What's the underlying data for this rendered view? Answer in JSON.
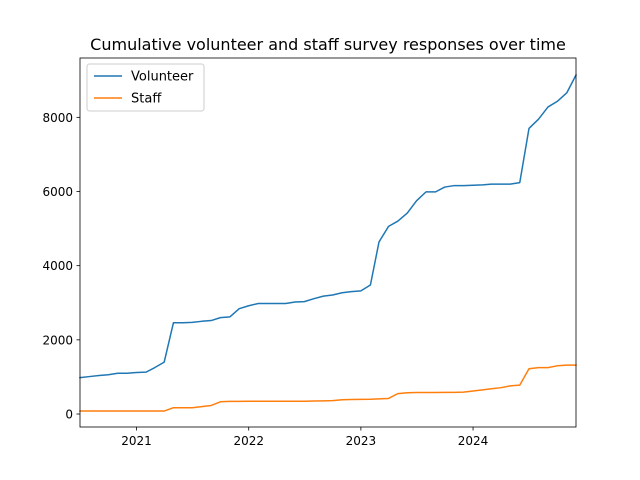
{
  "chart_data": {
    "type": "line",
    "title": "Cumulative volunteer and staff survey responses over time",
    "xlabel": "",
    "ylabel": "",
    "xlim": [
      "2020-07-01",
      "2024-12-01"
    ],
    "ylim": [
      -350,
      9600
    ],
    "x_ticks": [
      "2021",
      "2022",
      "2023",
      "2024"
    ],
    "y_ticks": [
      0,
      2000,
      4000,
      6000,
      8000
    ],
    "legend_position": "top-left",
    "grid": false,
    "x": [
      "2020-07",
      "2020-08",
      "2020-09",
      "2020-10",
      "2020-11",
      "2020-12",
      "2021-01",
      "2021-02",
      "2021-03",
      "2021-04",
      "2021-05",
      "2021-06",
      "2021-07",
      "2021-08",
      "2021-09",
      "2021-10",
      "2021-11",
      "2021-12",
      "2022-01",
      "2022-02",
      "2022-03",
      "2022-04",
      "2022-05",
      "2022-06",
      "2022-07",
      "2022-08",
      "2022-09",
      "2022-10",
      "2022-11",
      "2022-12",
      "2023-01",
      "2023-02",
      "2023-03",
      "2023-04",
      "2023-05",
      "2023-06",
      "2023-07",
      "2023-08",
      "2023-09",
      "2023-10",
      "2023-11",
      "2023-12",
      "2024-01",
      "2024-02",
      "2024-03",
      "2024-04",
      "2024-05",
      "2024-06",
      "2024-07",
      "2024-08",
      "2024-09",
      "2024-10",
      "2024-11",
      "2024-12"
    ],
    "series": [
      {
        "name": "Volunteer",
        "color": "#1f77b4",
        "values": [
          980,
          1010,
          1040,
          1060,
          1100,
          1100,
          1120,
          1130,
          1250,
          1400,
          2460,
          2460,
          2470,
          2500,
          2520,
          2600,
          2620,
          2840,
          2920,
          2980,
          2980,
          2980,
          2980,
          3020,
          3030,
          3110,
          3180,
          3210,
          3270,
          3300,
          3320,
          3480,
          4640,
          5060,
          5200,
          5420,
          5750,
          5990,
          5990,
          6120,
          6160,
          6160,
          6170,
          6180,
          6200,
          6200,
          6200,
          6240,
          7700,
          7950,
          8280,
          8430,
          8660,
          9140
        ]
      },
      {
        "name": "Staff",
        "color": "#ff7f0e",
        "values": [
          80,
          80,
          80,
          80,
          80,
          80,
          80,
          80,
          80,
          80,
          170,
          170,
          170,
          200,
          230,
          330,
          340,
          340,
          345,
          345,
          345,
          345,
          345,
          345,
          345,
          350,
          355,
          360,
          385,
          390,
          395,
          400,
          410,
          420,
          550,
          575,
          580,
          580,
          580,
          585,
          585,
          590,
          620,
          650,
          680,
          710,
          760,
          780,
          1220,
          1250,
          1250,
          1300,
          1320,
          1320
        ]
      }
    ]
  }
}
